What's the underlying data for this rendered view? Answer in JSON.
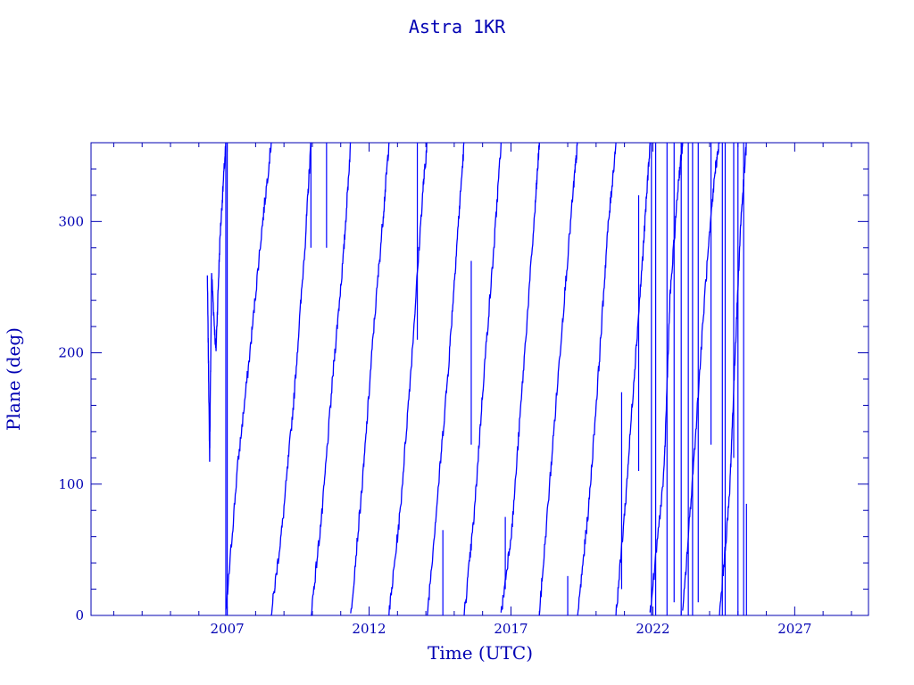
{
  "chart_data": {
    "type": "line",
    "title": "Astra 1KR",
    "xlabel": "Time (UTC)",
    "ylabel": "Plane (deg)",
    "xlim": [
      2002.2,
      2029.6
    ],
    "ylim": [
      0,
      360
    ],
    "x_ticks": [
      2007,
      2012,
      2017,
      2022,
      2027
    ],
    "x_tick_labels": [
      "2007",
      "2012",
      "2017",
      "2022",
      "2027"
    ],
    "y_ticks": [
      0,
      100,
      200,
      300
    ],
    "y_tick_labels": [
      "0",
      "100",
      "200",
      "300"
    ],
    "grid": false,
    "line_color": "#0000ff",
    "axis_color": "#0000b3",
    "series": [
      {
        "values": [
          [
            2006.3,
            258
          ],
          [
            2006.38,
            120
          ],
          [
            2006.45,
            260
          ],
          [
            2006.6,
            200
          ],
          [
            2006.75,
            290
          ],
          [
            2006.95,
            360
          ]
        ]
      },
      {
        "values": [
          [
            2006.95,
            0
          ],
          [
            2007.35,
            110
          ],
          [
            2007.8,
            200
          ],
          [
            2008.2,
            290
          ],
          [
            2008.55,
            360
          ]
        ]
      },
      {
        "values": [
          [
            2008.55,
            0
          ],
          [
            2008.95,
            70
          ],
          [
            2009.35,
            165
          ],
          [
            2009.75,
            285
          ],
          [
            2009.95,
            360
          ]
        ]
      },
      {
        "values": [
          [
            2009.95,
            0
          ],
          [
            2010.35,
            80
          ],
          [
            2010.75,
            190
          ],
          [
            2011.1,
            275
          ],
          [
            2011.35,
            360
          ]
        ]
      },
      {
        "values": [
          [
            2011.35,
            0
          ],
          [
            2011.8,
            110
          ],
          [
            2012.15,
            215
          ],
          [
            2012.5,
            305
          ],
          [
            2012.7,
            360
          ]
        ]
      },
      {
        "values": [
          [
            2012.7,
            0
          ],
          [
            2013.1,
            80
          ],
          [
            2013.5,
            195
          ],
          [
            2013.9,
            325
          ],
          [
            2014.05,
            360
          ]
        ]
      },
      {
        "values": [
          [
            2014.05,
            0
          ],
          [
            2014.45,
            100
          ],
          [
            2014.8,
            190
          ],
          [
            2015.1,
            285
          ],
          [
            2015.35,
            360
          ]
        ]
      },
      {
        "values": [
          [
            2015.35,
            0
          ],
          [
            2015.7,
            75
          ],
          [
            2016.05,
            185
          ],
          [
            2016.4,
            280
          ],
          [
            2016.65,
            360
          ]
        ]
      },
      {
        "values": [
          [
            2016.65,
            0
          ],
          [
            2017.05,
            70
          ],
          [
            2017.45,
            190
          ],
          [
            2017.85,
            310
          ],
          [
            2018.0,
            360
          ]
        ]
      },
      {
        "values": [
          [
            2018.0,
            0
          ],
          [
            2018.4,
            110
          ],
          [
            2018.8,
            220
          ],
          [
            2019.2,
            325
          ],
          [
            2019.35,
            360
          ]
        ]
      },
      {
        "values": [
          [
            2019.35,
            0
          ],
          [
            2019.75,
            85
          ],
          [
            2020.1,
            190
          ],
          [
            2020.4,
            290
          ],
          [
            2020.7,
            360
          ]
        ]
      },
      {
        "values": [
          [
            2020.7,
            0
          ],
          [
            2021.05,
            90
          ],
          [
            2021.35,
            185
          ],
          [
            2021.65,
            275
          ],
          [
            2021.9,
            360
          ]
        ]
      },
      {
        "values": [
          [
            2021.9,
            0
          ],
          [
            2022.4,
            110
          ],
          [
            2022.6,
            240
          ],
          [
            2022.9,
            330
          ],
          [
            2023.05,
            360
          ]
        ]
      },
      {
        "values": [
          [
            2023.05,
            0
          ],
          [
            2023.45,
            120
          ],
          [
            2023.85,
            250
          ],
          [
            2024.2,
            340
          ],
          [
            2024.35,
            360
          ]
        ]
      },
      {
        "values": [
          [
            2024.35,
            0
          ],
          [
            2024.7,
            90
          ],
          [
            2024.9,
            200
          ],
          [
            2025.1,
            300
          ],
          [
            2025.3,
            360
          ]
        ]
      }
    ],
    "spikes": [
      [
        2006.95,
        0,
        360
      ],
      [
        2007.0,
        0,
        360
      ],
      [
        2009.95,
        280,
        360
      ],
      [
        2010.5,
        280,
        360
      ],
      [
        2013.7,
        210,
        360
      ],
      [
        2014.6,
        0,
        65
      ],
      [
        2015.6,
        130,
        270
      ],
      [
        2016.8,
        20,
        75
      ],
      [
        2019.0,
        0,
        30
      ],
      [
        2020.9,
        20,
        170
      ],
      [
        2021.5,
        110,
        320
      ],
      [
        2021.95,
        0,
        360
      ],
      [
        2022.1,
        0,
        360
      ],
      [
        2022.5,
        0,
        360
      ],
      [
        2022.75,
        10,
        360
      ],
      [
        2023.0,
        0,
        360
      ],
      [
        2023.25,
        0,
        360
      ],
      [
        2023.4,
        0,
        360
      ],
      [
        2023.6,
        10,
        360
      ],
      [
        2024.05,
        130,
        360
      ],
      [
        2024.45,
        0,
        360
      ],
      [
        2024.55,
        0,
        360
      ],
      [
        2024.85,
        120,
        360
      ],
      [
        2025.0,
        0,
        360
      ],
      [
        2025.2,
        0,
        360
      ],
      [
        2025.3,
        0,
        85
      ]
    ]
  }
}
